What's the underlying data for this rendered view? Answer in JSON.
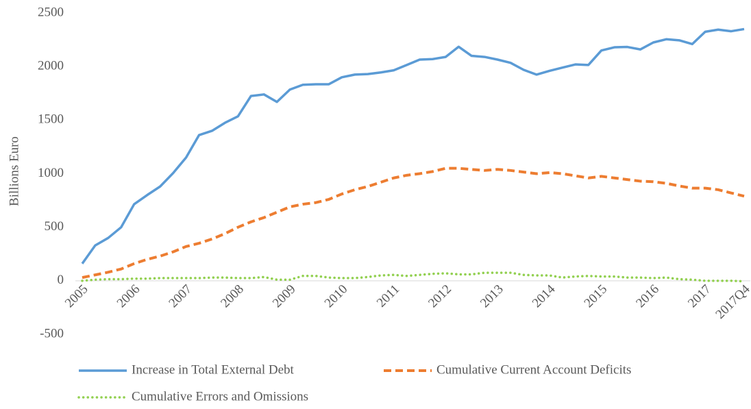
{
  "chart_data": {
    "type": "line",
    "y_label": "Billions Euro",
    "categories": [
      "2005",
      null,
      null,
      null,
      "2006",
      null,
      null,
      null,
      "2007",
      null,
      null,
      null,
      "2008",
      null,
      null,
      null,
      "2009",
      null,
      null,
      null,
      "2010",
      null,
      null,
      null,
      "2011",
      null,
      null,
      null,
      "2012",
      null,
      null,
      null,
      "2013",
      null,
      null,
      null,
      "2014",
      null,
      null,
      null,
      "2015",
      null,
      null,
      null,
      "2016",
      null,
      null,
      null,
      "2017",
      null,
      null,
      "2017Q4"
    ],
    "series": [
      {
        "name": "Increase in Total External Debt",
        "color": "#5b9bd5",
        "style": "solid",
        "values": [
          160,
          330,
          400,
          500,
          715,
          800,
          880,
          1005,
          1150,
          1360,
          1400,
          1475,
          1535,
          1725,
          1740,
          1670,
          1785,
          1830,
          1835,
          1835,
          1900,
          1925,
          1930,
          1945,
          1965,
          2015,
          2065,
          2070,
          2090,
          2185,
          2100,
          2090,
          2065,
          2035,
          1970,
          1925,
          1960,
          1990,
          2020,
          2015,
          2150,
          2180,
          2183,
          2160,
          2225,
          2255,
          2245,
          2210,
          2325,
          2345,
          2330,
          2350
        ]
      },
      {
        "name": "Cumulative Current Account Deficits",
        "color": "#ed7d31",
        "style": "dashed",
        "values": [
          30,
          55,
          80,
          110,
          160,
          200,
          230,
          270,
          320,
          350,
          390,
          440,
          500,
          550,
          590,
          640,
          690,
          715,
          730,
          760,
          810,
          850,
          880,
          920,
          960,
          985,
          1000,
          1020,
          1050,
          1050,
          1040,
          1030,
          1040,
          1030,
          1015,
          1000,
          1010,
          1000,
          980,
          960,
          975,
          960,
          945,
          930,
          925,
          910,
          885,
          865,
          865,
          850,
          820,
          790
        ]
      },
      {
        "name": "Cumulative Errors and Omissions",
        "color": "#92d050",
        "style": "dotted",
        "values": [
          0,
          10,
          15,
          15,
          20,
          20,
          25,
          25,
          25,
          25,
          30,
          30,
          25,
          25,
          35,
          10,
          10,
          45,
          45,
          30,
          25,
          25,
          35,
          50,
          55,
          45,
          55,
          65,
          70,
          60,
          60,
          75,
          75,
          75,
          55,
          50,
          50,
          30,
          40,
          45,
          40,
          40,
          30,
          30,
          25,
          30,
          15,
          10,
          0,
          0,
          0,
          -5
        ]
      }
    ],
    "ylim": [
      -500,
      2500
    ],
    "yticks": [
      -500,
      0,
      500,
      1000,
      1500,
      2000,
      2500
    ]
  }
}
